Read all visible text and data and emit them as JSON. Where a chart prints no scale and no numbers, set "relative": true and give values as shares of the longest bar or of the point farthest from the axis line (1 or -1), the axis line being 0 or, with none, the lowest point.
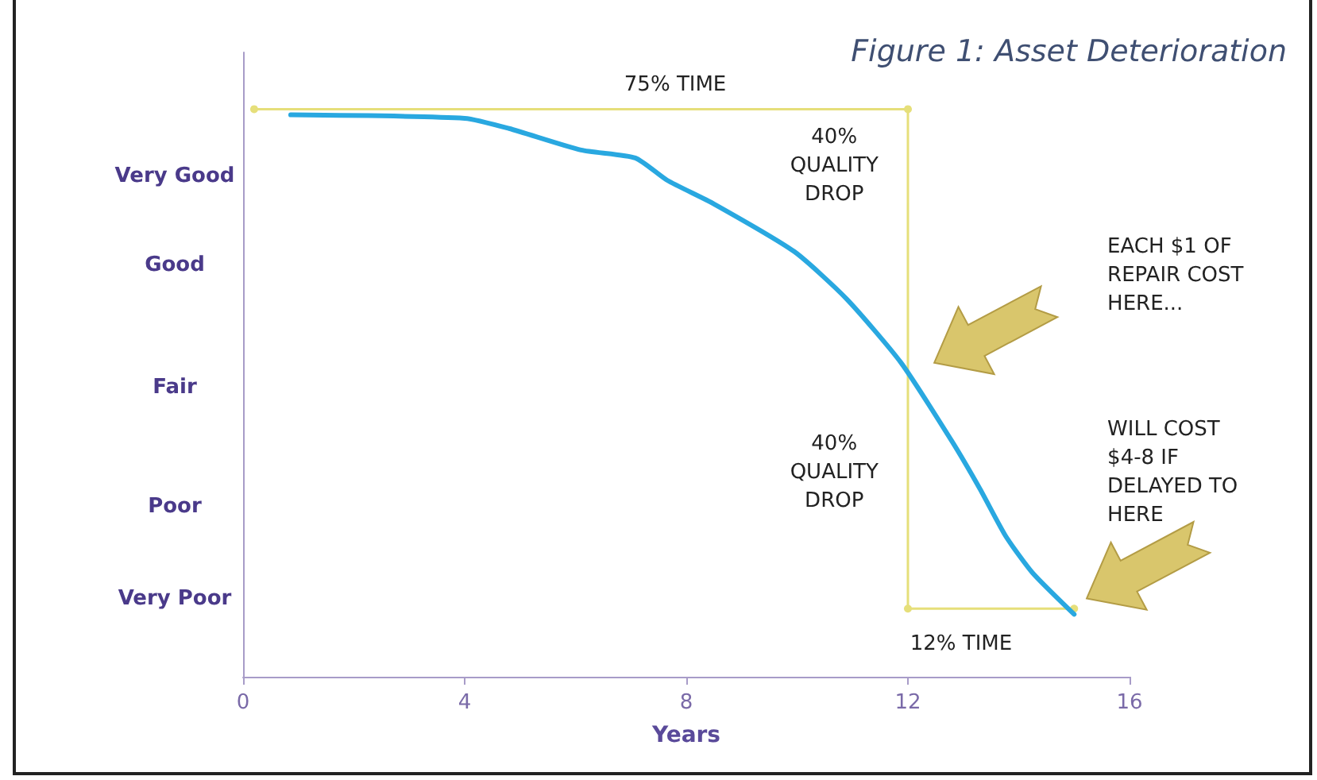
{
  "chart_data": {
    "type": "line",
    "title": "Figure 1: Asset Deterioration",
    "xlabel": "Years",
    "xlim": [
      0,
      16
    ],
    "xticks": [
      0,
      4,
      8,
      12,
      16
    ],
    "relative": true,
    "grid": false,
    "marker": "none",
    "series": [
      {
        "color": "#29a8e0",
        "x": [
          0.86,
          4.0,
          4.8,
          6.1,
          7.08,
          7.65,
          8.5,
          9.95,
          10.9,
          11.87,
          12.8,
          13.3,
          13.77,
          14.25,
          15.0
        ],
        "values": [
          0.99,
          0.984,
          0.966,
          0.928,
          0.914,
          0.875,
          0.833,
          0.749,
          0.665,
          0.554,
          0.414,
          0.331,
          0.247,
          0.183,
          0.11
        ]
      },
      {
        "color": "#e6df7a",
        "marker": "circle",
        "x": [
          0.2,
          12,
          12,
          15
        ],
        "values": [
          1,
          1,
          0.12,
          0.12
        ]
      }
    ],
    "annotations": [
      "Very Good",
      "Good",
      "Fair",
      "Poor",
      "Very Poor",
      "75% TIME",
      "40%\nQUALITY\nDROP",
      "40%\nQUALITY\nDROP",
      "12% TIME",
      "EACH $1 OF\nREPAIR COST\nHERE...",
      "WILL COST\n$4-8 IF\nDELAYED TO\nHERE"
    ]
  }
}
